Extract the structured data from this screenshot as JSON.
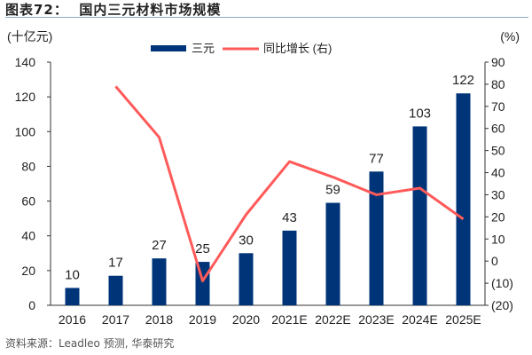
{
  "title": "图表72：  国内三元材料市场规模",
  "source": "资料来源：Leadleo 预测, 华泰研究",
  "chart_data": {
    "type": "bar+line",
    "categories": [
      "2016",
      "2017",
      "2018",
      "2019",
      "2020",
      "2021E",
      "2022E",
      "2023E",
      "2024E",
      "2025E"
    ],
    "series": [
      {
        "name": "三元",
        "type": "bar",
        "axis": "left",
        "color": "#003478",
        "values": [
          10,
          17,
          27,
          25,
          30,
          43,
          59,
          77,
          103,
          122
        ]
      },
      {
        "name": "同比增长 (右)",
        "type": "line",
        "axis": "right",
        "color": "#ff5a5a",
        "values": [
          null,
          79,
          56,
          -9,
          21,
          45,
          38,
          30,
          33,
          19
        ]
      }
    ],
    "ylabel_left": "(十亿元)",
    "ylabel_right": "(%)",
    "ylim_left": [
      0,
      140
    ],
    "yticks_left": [
      "0",
      "20",
      "40",
      "60",
      "80",
      "100",
      "120",
      "140"
    ],
    "ylim_right": [
      -20,
      90
    ],
    "yticks_right": [
      "(20)",
      "(10)",
      "0",
      "10",
      "20",
      "30",
      "40",
      "50",
      "60",
      "70",
      "80",
      "90"
    ],
    "legend_position": "top-center",
    "grid": false
  }
}
